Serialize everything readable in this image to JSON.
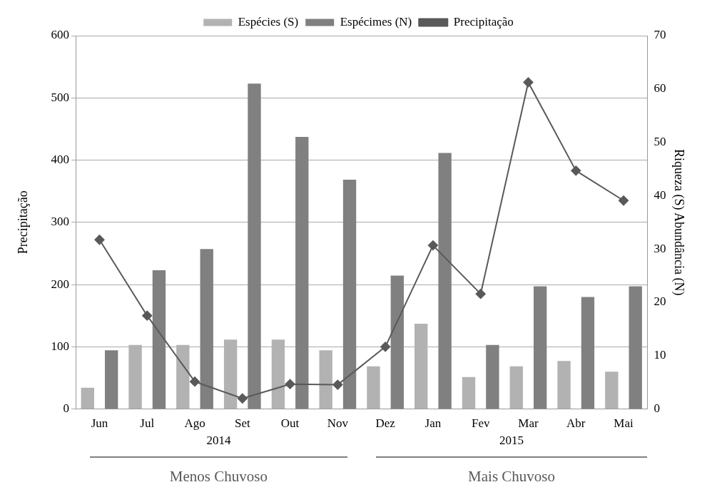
{
  "chart_data": {
    "type": "bar",
    "categories": [
      "Jun",
      "Jul",
      "Ago",
      "Set",
      "Out",
      "Nov",
      "Dez",
      "Jan",
      "Fev",
      "Mar",
      "Abr",
      "Mai"
    ],
    "series": [
      {
        "name": "Espécies (S)",
        "axis": "y2",
        "color": "#b2b2b2",
        "values": [
          4,
          12,
          12,
          13,
          13,
          11,
          8,
          16,
          6,
          8,
          9,
          7
        ]
      },
      {
        "name": "Espécimes (N)",
        "axis": "y2",
        "color": "#808080",
        "values": [
          11,
          26,
          30,
          61,
          51,
          43,
          25,
          48,
          12,
          23,
          21,
          23
        ]
      },
      {
        "name": "Precipitação",
        "type": "line",
        "axis": "y",
        "color": "#595959",
        "marker": "diamond",
        "values": [
          272,
          150,
          44,
          17,
          40,
          39,
          100,
          263,
          185,
          525,
          383,
          335
        ]
      }
    ],
    "ylabel": "Precipitação",
    "y2label": "Riqueza (S) Abundância (N)",
    "ylim": [
      0,
      600
    ],
    "yticks": [
      0,
      100,
      200,
      300,
      400,
      500,
      600
    ],
    "y2lim": [
      0,
      70
    ],
    "y2ticks": [
      0,
      10,
      20,
      30,
      40,
      50,
      60,
      70
    ],
    "grid": "y",
    "legend": "top",
    "annotations": [
      "2014",
      "2015",
      "Menos Chuvoso",
      "Mais Chuvoso"
    ]
  }
}
